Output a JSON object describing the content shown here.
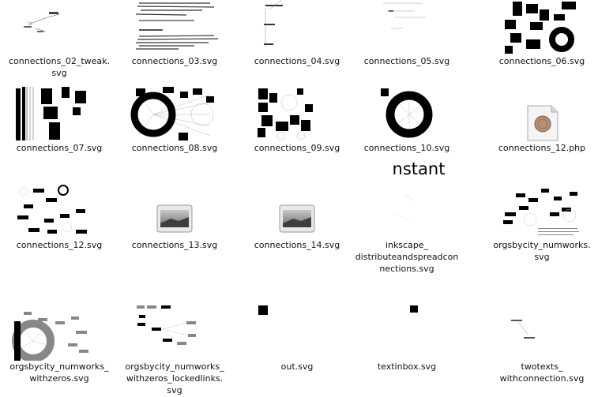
{
  "files": [
    {
      "name": "connections_02_tweak.svg",
      "label": "connections_02_tweak.\nsvg",
      "thumbnail": "sparse-line-sketch"
    },
    {
      "name": "connections_03.svg",
      "label": "connections_03.svg",
      "thumbnail": "dense-text-lines"
    },
    {
      "name": "connections_04.svg",
      "label": "connections_04.svg",
      "thumbnail": "vertical-text-labels"
    },
    {
      "name": "connections_05.svg",
      "label": "connections_05.svg",
      "thumbnail": "faint-horizontal-lines"
    },
    {
      "name": "connections_06.svg",
      "label": "connections_06.svg",
      "thumbnail": "black-blocks-and-rings"
    },
    {
      "name": "connections_07.svg",
      "label": "connections_07.svg",
      "thumbnail": "black-bars-columns"
    },
    {
      "name": "connections_08.svg",
      "label": "connections_08.svg",
      "thumbnail": "ring-of-blocks-radial"
    },
    {
      "name": "connections_09.svg",
      "label": "connections_09.svg",
      "thumbnail": "block-cluster-arc"
    },
    {
      "name": "connections_10.svg",
      "label": "connections_10.svg",
      "thumbnail": "thick-black-ring"
    },
    {
      "name": "connections_12.php",
      "label": "connections_12.php",
      "thumbnail": "php-document-icon"
    },
    {
      "name": "connections_12.svg",
      "label": "connections_12.svg",
      "thumbnail": "scattered-black-boxes"
    },
    {
      "name": "connections_13.svg",
      "label": "connections_13.svg",
      "thumbnail": "generic-image-icon"
    },
    {
      "name": "connections_14.svg",
      "label": "connections_14.svg",
      "thumbnail": "generic-image-icon"
    },
    {
      "name": "inkscape_distributeandspreadconnections.svg",
      "label": "inkscape_\ndistributeandspreadcon\nnections.svg",
      "thumbnail": "large-text-nstant",
      "thumb_text": "nstant"
    },
    {
      "name": "orgsbycity_numworks.svg",
      "label": "orgsbycity_numworks.\nsvg",
      "thumbnail": "scattered-boxes-with-text"
    },
    {
      "name": "orgsbycity_numworks_withzeros.svg",
      "label": "orgsbycity_numworks_\nwithzeros.svg",
      "thumbnail": "gray-ring-with-boxes"
    },
    {
      "name": "orgsbycity_numworks_withzeros_lockedlinks.svg",
      "label": "orgsbycity_numworks_\nwithzeros_lockedlinks.\nsvg",
      "thumbnail": "gray-boxes-connected"
    },
    {
      "name": "out.svg",
      "label": "out.svg",
      "thumbnail": "single-black-square"
    },
    {
      "name": "textinbox.svg",
      "label": "textinbox.svg",
      "thumbnail": "single-black-square-small"
    },
    {
      "name": "twotexts_withconnection.svg",
      "label": "twotexts_\nwithconnection.svg",
      "thumbnail": "two-tiny-texts-line"
    }
  ],
  "colors": {
    "background": "#ffffff",
    "label_text": "#111111",
    "thumb_black": "#000000",
    "thumb_gray": "#888888"
  }
}
